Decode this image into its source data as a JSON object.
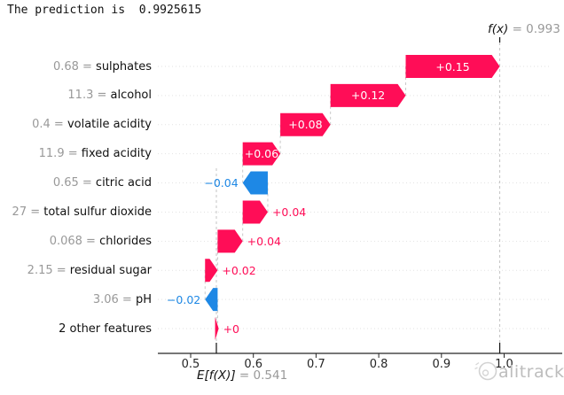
{
  "title": "The prediction is  0.9925615",
  "chart_data": {
    "type": "waterfall",
    "description": "SHAP waterfall plot of feature contributions to a prediction",
    "base": {
      "label": "E[f(X)]",
      "display": "= 0.541",
      "value": 0.541
    },
    "output": {
      "label": "f(x)",
      "display": "= 0.993",
      "value": 0.993
    },
    "x_axis": {
      "tick_values": [
        0.5,
        0.6,
        0.7,
        0.8,
        0.9,
        1.0
      ],
      "tick_labels": [
        "0.5",
        "0.6",
        "0.7",
        "0.8",
        "0.9",
        "1.0"
      ]
    },
    "features": [
      {
        "value": "0.68",
        "name": "sulphates",
        "shap": 0.15,
        "label": "+0.15"
      },
      {
        "value": "11.3",
        "name": "alcohol",
        "shap": 0.12,
        "label": "+0.12"
      },
      {
        "value": "0.4",
        "name": "volatile acidity",
        "shap": 0.08,
        "label": "+0.08"
      },
      {
        "value": "11.9",
        "name": "fixed acidity",
        "shap": 0.06,
        "label": "+0.06"
      },
      {
        "value": "0.65",
        "name": "citric acid",
        "shap": -0.04,
        "label": "−0.04"
      },
      {
        "value": "27",
        "name": "total sulfur dioxide",
        "shap": 0.04,
        "label": "+0.04"
      },
      {
        "value": "0.068",
        "name": "chlorides",
        "shap": 0.04,
        "label": "+0.04"
      },
      {
        "value": "2.15",
        "name": "residual sugar",
        "shap": 0.02,
        "label": "+0.02"
      },
      {
        "value": "3.06",
        "name": "pH",
        "shap": -0.02,
        "label": "−0.02"
      },
      {
        "value": "",
        "name": "2 other features",
        "shap": 0.004,
        "label": "+0"
      }
    ],
    "colors": {
      "positive": "#ff0d57",
      "negative": "#1e88e5"
    }
  },
  "watermark": {
    "text": "alitrack"
  }
}
